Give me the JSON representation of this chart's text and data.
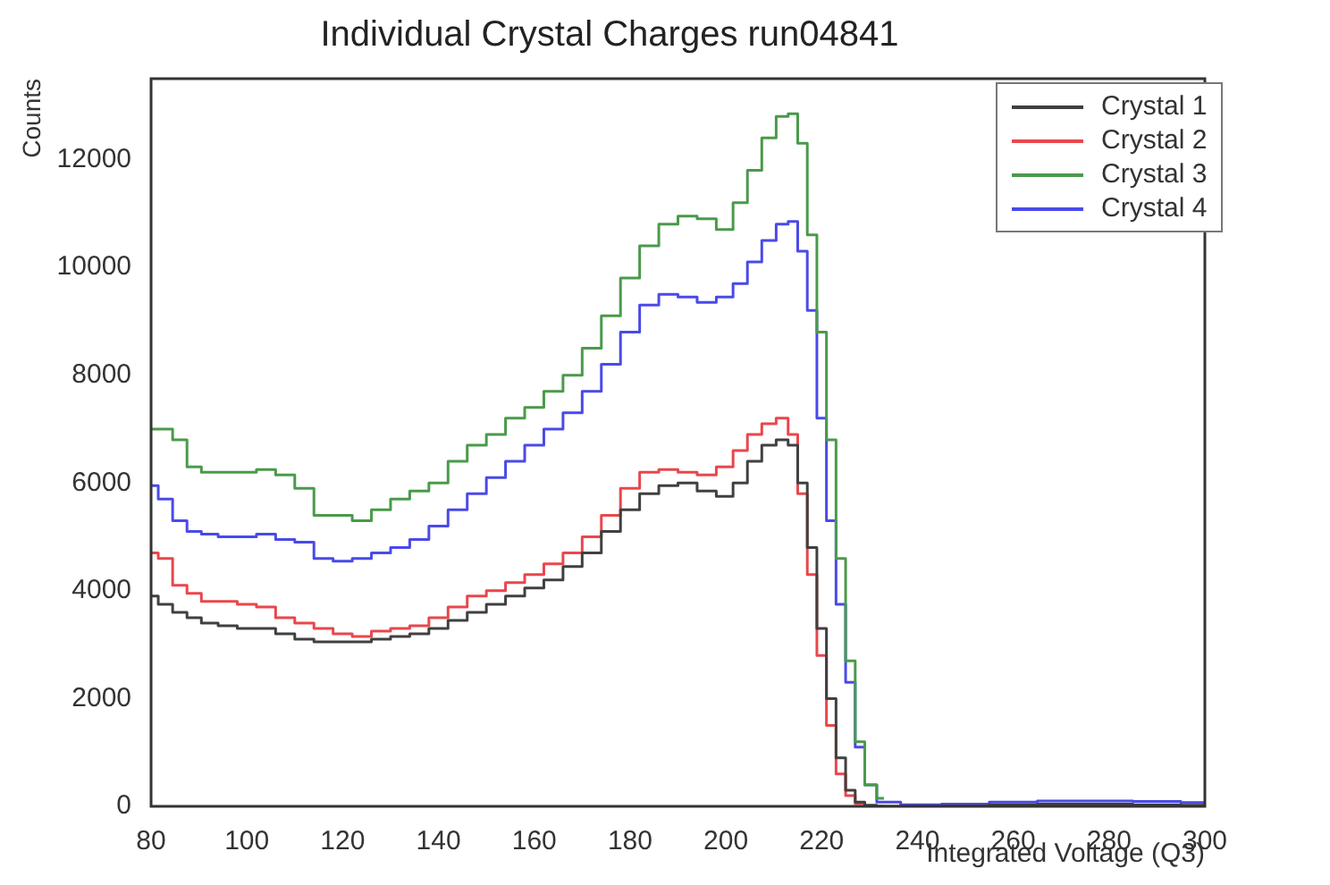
{
  "chart_data": {
    "type": "step",
    "title": "Individual Crystal Charges run04841",
    "xlabel": "Integrated Voltage (Q3)",
    "ylabel": "Counts",
    "x": [
      80,
      83,
      86,
      89,
      92,
      96,
      100,
      104,
      108,
      112,
      116,
      120,
      124,
      128,
      132,
      136,
      140,
      144,
      148,
      152,
      156,
      160,
      164,
      168,
      172,
      176,
      180,
      184,
      188,
      192,
      196,
      200,
      203,
      206,
      209,
      212,
      214,
      216,
      218,
      220,
      222,
      224,
      226,
      228,
      230,
      233,
      240,
      250,
      260,
      270,
      280,
      290,
      300
    ],
    "series": [
      {
        "name": "Crystal 1",
        "color": "#404040",
        "values": [
          3900,
          3750,
          3600,
          3500,
          3400,
          3350,
          3300,
          3300,
          3200,
          3100,
          3050,
          3050,
          3050,
          3100,
          3150,
          3200,
          3300,
          3450,
          3600,
          3750,
          3900,
          4050,
          4200,
          4450,
          4700,
          5100,
          5500,
          5800,
          5950,
          6000,
          5850,
          5750,
          6000,
          6400,
          6700,
          6800,
          6700,
          6000,
          4800,
          3300,
          2000,
          900,
          300,
          80,
          20,
          0,
          0,
          10,
          30,
          40,
          40,
          30,
          20
        ]
      },
      {
        "name": "Crystal 2",
        "color": "#e8474c",
        "values": [
          4700,
          4600,
          4100,
          3950,
          3800,
          3800,
          3750,
          3700,
          3500,
          3400,
          3300,
          3200,
          3150,
          3250,
          3300,
          3350,
          3500,
          3700,
          3900,
          4000,
          4150,
          4300,
          4500,
          4700,
          5000,
          5400,
          5900,
          6200,
          6250,
          6200,
          6150,
          6300,
          6600,
          6900,
          7100,
          7200,
          6900,
          5800,
          4300,
          2800,
          1500,
          600,
          200,
          50,
          10,
          0,
          null,
          null,
          null,
          null,
          null,
          null,
          null
        ]
      },
      {
        "name": "Crystal 3",
        "color": "#4a9a4a",
        "values": [
          7000,
          7000,
          6800,
          6300,
          6200,
          6200,
          6200,
          6250,
          6150,
          5900,
          5400,
          5400,
          5300,
          5500,
          5700,
          5850,
          6000,
          6400,
          6700,
          6900,
          7200,
          7400,
          7700,
          8000,
          8500,
          9100,
          9800,
          10400,
          10800,
          10950,
          10900,
          10700,
          11200,
          11800,
          12400,
          12800,
          12850,
          12300,
          10600,
          8800,
          6800,
          4600,
          2700,
          1200,
          400,
          150,
          null,
          null,
          null,
          null,
          null,
          null,
          null
        ]
      },
      {
        "name": "Crystal 4",
        "color": "#4a4ae8",
        "values": [
          5950,
          5700,
          5300,
          5100,
          5050,
          5000,
          5000,
          5050,
          4950,
          4900,
          4600,
          4550,
          4600,
          4700,
          4800,
          4950,
          5200,
          5500,
          5800,
          6100,
          6400,
          6700,
          7000,
          7300,
          7700,
          8200,
          8800,
          9300,
          9500,
          9450,
          9350,
          9450,
          9700,
          10100,
          10500,
          10800,
          10850,
          10300,
          9200,
          7200,
          5300,
          3750,
          2300,
          1100,
          400,
          80,
          30,
          40,
          80,
          100,
          100,
          90,
          70
        ]
      }
    ],
    "xlim": [
      80,
      300
    ],
    "xticks": [
      80,
      100,
      120,
      140,
      160,
      180,
      200,
      220,
      240,
      260,
      280,
      300
    ],
    "ylim": [
      0,
      13500
    ],
    "yticks": [
      0,
      2000,
      4000,
      6000,
      8000,
      10000,
      12000
    ],
    "legend": "top right"
  }
}
